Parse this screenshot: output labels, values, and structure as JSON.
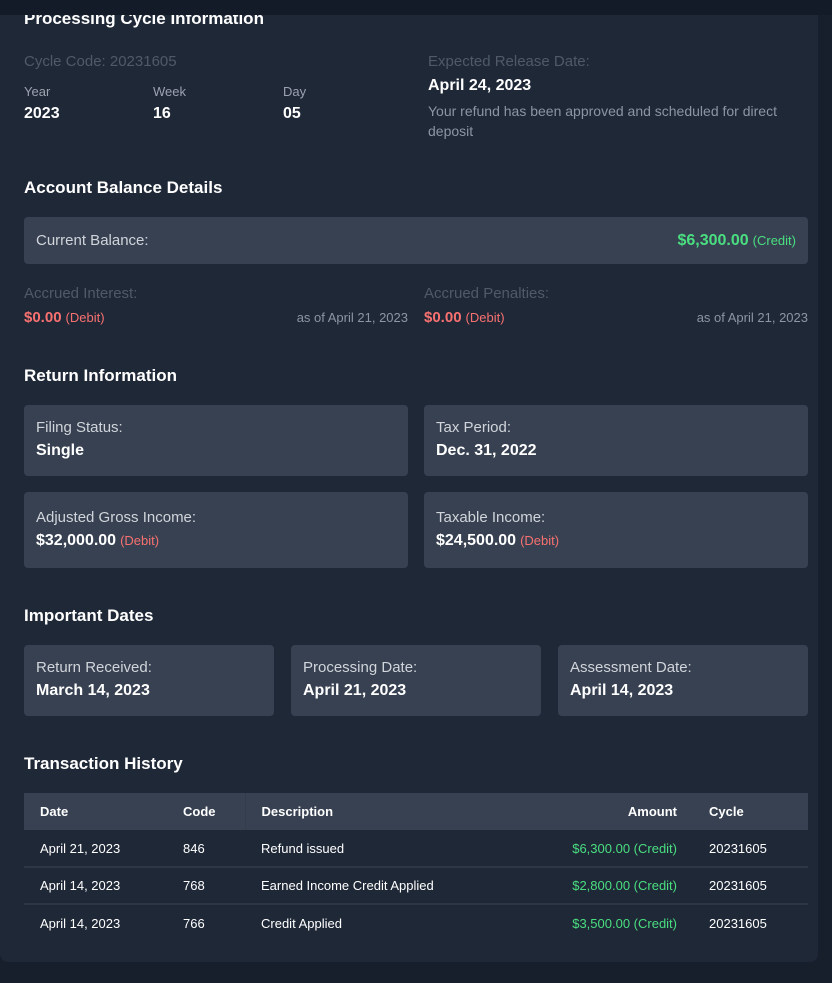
{
  "cycle": {
    "title": "Processing Cycle Information",
    "code_label": "Cycle Code: 20231605",
    "year_label": "Year",
    "year": "2023",
    "week_label": "Week",
    "week": "16",
    "day_label": "Day",
    "day": "05",
    "release_label": "Expected Release Date:",
    "release_date": "April 24, 2023",
    "release_desc": "Your refund has been approved and scheduled for direct deposit"
  },
  "balance": {
    "title": "Account Balance Details",
    "current_label": "Current Balance:",
    "current_value": "$6,300.00",
    "current_tag": "(Credit)",
    "interest_label": "Accrued Interest:",
    "interest_value": "$0.00",
    "interest_tag": "(Debit)",
    "interest_asof": "as of April 21, 2023",
    "penalties_label": "Accrued Penalties:",
    "penalties_value": "$0.00",
    "penalties_tag": "(Debit)",
    "penalties_asof": "as of April 21, 2023"
  },
  "return": {
    "title": "Return Information",
    "filing_label": "Filing Status:",
    "filing": "Single",
    "period_label": "Tax Period:",
    "period": "Dec. 31, 2022",
    "agi_label": "Adjusted Gross Income:",
    "agi": "$32,000.00",
    "agi_tag": "(Debit)",
    "taxable_label": "Taxable Income:",
    "taxable": "$24,500.00",
    "taxable_tag": "(Debit)"
  },
  "dates": {
    "title": "Important Dates",
    "received_label": "Return Received:",
    "received": "March 14, 2023",
    "processing_label": "Processing Date:",
    "processing": "April 21, 2023",
    "assessment_label": "Assessment Date:",
    "assessment": "April 14, 2023"
  },
  "transactions": {
    "title": "Transaction History",
    "headers": [
      "Date",
      "Code",
      "Description",
      "Amount",
      "Cycle"
    ],
    "rows": [
      {
        "date": "April 21, 2023",
        "code": "846",
        "description": "Refund issued",
        "amount": "$6,300.00 (Credit)",
        "cycle": "20231605"
      },
      {
        "date": "April 14, 2023",
        "code": "768",
        "description": "Earned Income Credit Applied",
        "amount": "$2,800.00 (Credit)",
        "cycle": "20231605"
      },
      {
        "date": "April 14, 2023",
        "code": "766",
        "description": "Credit Applied",
        "amount": "$3,500.00 (Credit)",
        "cycle": "20231605"
      }
    ]
  },
  "colors": {
    "credit": "#4ade80",
    "debit": "#f87171"
  }
}
